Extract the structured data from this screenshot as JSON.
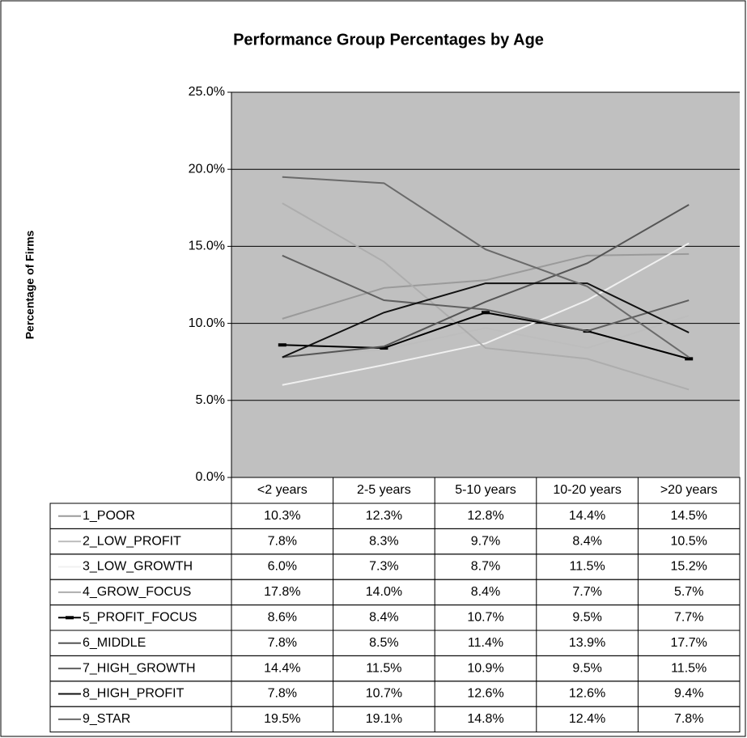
{
  "chart_data": {
    "type": "line",
    "title": "Performance Group Percentages by Age",
    "y_label": "Percentage of Firms",
    "categories": [
      "<2 years",
      "2-5 years",
      "5-10 years",
      "10-20 years",
      ">20 years"
    ],
    "ylim": [
      0,
      25
    ],
    "yticks": [
      {
        "value": 0,
        "label": "0.0%"
      },
      {
        "value": 5,
        "label": "5.0%"
      },
      {
        "value": 10,
        "label": "10.0%"
      },
      {
        "value": 15,
        "label": "15.0%"
      },
      {
        "value": 20,
        "label": "20.0%"
      },
      {
        "value": 25,
        "label": "25.0%"
      }
    ],
    "grid": true,
    "series": [
      {
        "name": "1_POOR",
        "color": "#9a9a9a",
        "values": [
          10.3,
          12.3,
          12.8,
          14.4,
          14.5
        ],
        "value_labels": [
          "10.3%",
          "12.3%",
          "12.8%",
          "14.4%",
          "14.5%"
        ]
      },
      {
        "name": "2_LOW_PROFIT",
        "color": "#bdbdbd",
        "values": [
          7.8,
          8.3,
          9.7,
          8.4,
          10.5
        ],
        "value_labels": [
          "7.8%",
          "8.3%",
          "9.7%",
          "8.4%",
          "10.5%"
        ]
      },
      {
        "name": "3_LOW_GROWTH",
        "color": "#f0f0f0",
        "values": [
          6.0,
          7.3,
          8.7,
          11.5,
          15.2
        ],
        "value_labels": [
          "6.0%",
          "7.3%",
          "8.7%",
          "11.5%",
          "15.2%"
        ]
      },
      {
        "name": "4_GROW_FOCUS",
        "color": "#adadad",
        "values": [
          17.8,
          14.0,
          8.4,
          7.7,
          5.7
        ],
        "value_labels": [
          "17.8%",
          "14.0%",
          "8.4%",
          "7.7%",
          "5.7%"
        ]
      },
      {
        "name": "5_PROFIT_FOCUS",
        "color": "#000000",
        "values": [
          8.6,
          8.4,
          10.7,
          9.5,
          7.7
        ],
        "value_labels": [
          "8.6%",
          "8.4%",
          "10.7%",
          "9.5%",
          "7.7%"
        ]
      },
      {
        "name": "6_MIDDLE",
        "color": "#555555",
        "values": [
          7.8,
          8.5,
          11.4,
          13.9,
          17.7
        ],
        "value_labels": [
          "7.8%",
          "8.5%",
          "11.4%",
          "13.9%",
          "17.7%"
        ]
      },
      {
        "name": "7_HIGH_GROWTH",
        "color": "#5f5f5f",
        "values": [
          14.4,
          11.5,
          10.9,
          9.5,
          11.5
        ],
        "value_labels": [
          "14.4%",
          "11.5%",
          "10.9%",
          "9.5%",
          "11.5%"
        ]
      },
      {
        "name": "8_HIGH_PROFIT",
        "color": "#111111",
        "values": [
          7.8,
          10.7,
          12.6,
          12.6,
          9.4
        ],
        "value_labels": [
          "7.8%",
          "10.7%",
          "12.6%",
          "12.6%",
          "9.4%"
        ]
      },
      {
        "name": "9_STAR",
        "color": "#6a6a6a",
        "values": [
          19.5,
          19.1,
          14.8,
          12.4,
          7.8
        ],
        "value_labels": [
          "19.5%",
          "19.1%",
          "14.8%",
          "12.4%",
          "7.8%"
        ]
      }
    ]
  }
}
